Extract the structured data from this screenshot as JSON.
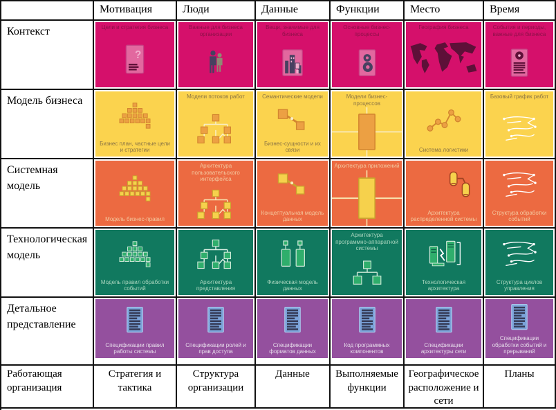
{
  "table": {
    "columns": [
      {
        "key": "motivation",
        "label": "Мотивация"
      },
      {
        "key": "people",
        "label": "Люди"
      },
      {
        "key": "data",
        "label": "Данные"
      },
      {
        "key": "functions",
        "label": "Функции"
      },
      {
        "key": "place",
        "label": "Место"
      },
      {
        "key": "time",
        "label": "Время"
      }
    ],
    "rows": [
      {
        "key": "context",
        "name": "Контекст",
        "bg": "#d5106b",
        "label_color": "#8c1048",
        "palette": {
          "fill": "#e2689f",
          "stroke": "#c74285",
          "dark": "#5e1038",
          "light": "#f2aecd",
          "extra": "#474060"
        },
        "cells": [
          {
            "icon": "document-question-icon",
            "top": "Цели и стратегия бизнеса"
          },
          {
            "icon": "people-icon",
            "top": "Важные для бизнеса организации"
          },
          {
            "icon": "buildings-icon",
            "top": "Вещи, значимые для бизнеса"
          },
          {
            "icon": "gears-document-icon",
            "top": "Основные бизнес-процессы"
          },
          {
            "icon": "world-map-icon",
            "top": "География бизнеса"
          },
          {
            "icon": "document-clock-icon",
            "top": "События и периоды, важные для бизнеса"
          }
        ]
      },
      {
        "key": "business-model",
        "name": "Модель бизнеса",
        "bg": "#fbd34e",
        "label_color": "#8a7444",
        "palette": {
          "fill": "#eca043",
          "stroke": "#d2852f",
          "dark": "#8a7444",
          "light": "#f8eec9",
          "extra": "#f3c98c"
        },
        "cells": [
          {
            "icon": "pyramid-icon",
            "bottom": "Бизнес план, частные цели и стратегии"
          },
          {
            "icon": "org-chart-icon",
            "top": "Модели потоков работ"
          },
          {
            "icon": "linked-entities-icon",
            "top": "Семантические модели",
            "bottom": "Бизнес-сущности и их связи"
          },
          {
            "icon": "process-block-icon",
            "top": "Модели бизнес-процессов"
          },
          {
            "icon": "network-nodes-icon",
            "bottom": "Система логистики"
          },
          {
            "icon": "flow-sketch-icon",
            "top": "Базовый график работ"
          }
        ]
      },
      {
        "key": "system-model",
        "name": "Системная модель",
        "bg": "#ec6a41",
        "label_color": "#f3c9a0",
        "palette": {
          "fill": "#f6d14c",
          "stroke": "#caa32e",
          "dark": "#a34422",
          "light": "#f8e9b4",
          "extra": "#fbe694"
        },
        "cells": [
          {
            "icon": "pyramid-icon",
            "bottom": "Модель бизнес-правил"
          },
          {
            "icon": "org-chart-icon",
            "top": "Архитектура пользовательского интерфейса"
          },
          {
            "icon": "linked-entities-icon",
            "bottom": "Концептуальная модель данных"
          },
          {
            "icon": "process-block-icon",
            "top": "Архитектура приложений"
          },
          {
            "icon": "devices-icon",
            "align": "right",
            "bottom": "Архитектура распределенной системы"
          },
          {
            "icon": "flow-sketch-icon",
            "bottom": "Структура обработки событий"
          }
        ]
      },
      {
        "key": "technology-model",
        "name": "Технологическая модель",
        "bg": "#11795f",
        "label_color": "#abd6bf",
        "palette": {
          "fill": "#2fae6c",
          "stroke": "#cfe9d8",
          "dark": "#0a5a45",
          "light": "#dff2e6",
          "extra": "#9fd6b6"
        },
        "cells": [
          {
            "icon": "pyramid-icon",
            "bottom": "Модель правил обработки событий"
          },
          {
            "icon": "org-chart-icon",
            "bottom": "Архитектура представления"
          },
          {
            "icon": "physical-data-icon",
            "bottom": "Физическая модель данных"
          },
          {
            "icon": "tree-icon",
            "top": "Архитектура программно-аппаратной системы"
          },
          {
            "icon": "computers-icon",
            "bottom": "Технологическая архитектура"
          },
          {
            "icon": "flow-sketch-icon",
            "bottom": "Структура циклов управления"
          }
        ]
      },
      {
        "key": "detailed-representation",
        "name": "Детальное представление",
        "bg": "#94509e",
        "label_color": "#e6dcea",
        "palette": {
          "fill": "#7aa2d8",
          "stroke": "#a8c4e8",
          "dark": "#343a55",
          "light": "#cfdcf0",
          "extra": "#5c83c0"
        },
        "cells": [
          {
            "icon": "spec-document-icon",
            "bottom": "Спецификации правил работы системы"
          },
          {
            "icon": "spec-document-icon",
            "bottom": "Спецификации ролей и прав доступа"
          },
          {
            "icon": "spec-document-icon",
            "bottom": "Спецификации форматов данных"
          },
          {
            "icon": "spec-document-icon",
            "bottom": "Код программных компонентов"
          },
          {
            "icon": "spec-document-icon",
            "bottom": "Спецификации архитектуры сети"
          },
          {
            "icon": "spec-document-icon",
            "bottom": "Спецификации обработки событий и прерываний"
          }
        ]
      }
    ],
    "footer": {
      "row_label": "Работающая организация",
      "cells": [
        "Стратегия и тактика",
        "Структура организации",
        "Данные",
        "Выполняемые функции",
        "Географическое расположение и сети",
        "Планы"
      ]
    },
    "border_color": "#111111"
  }
}
